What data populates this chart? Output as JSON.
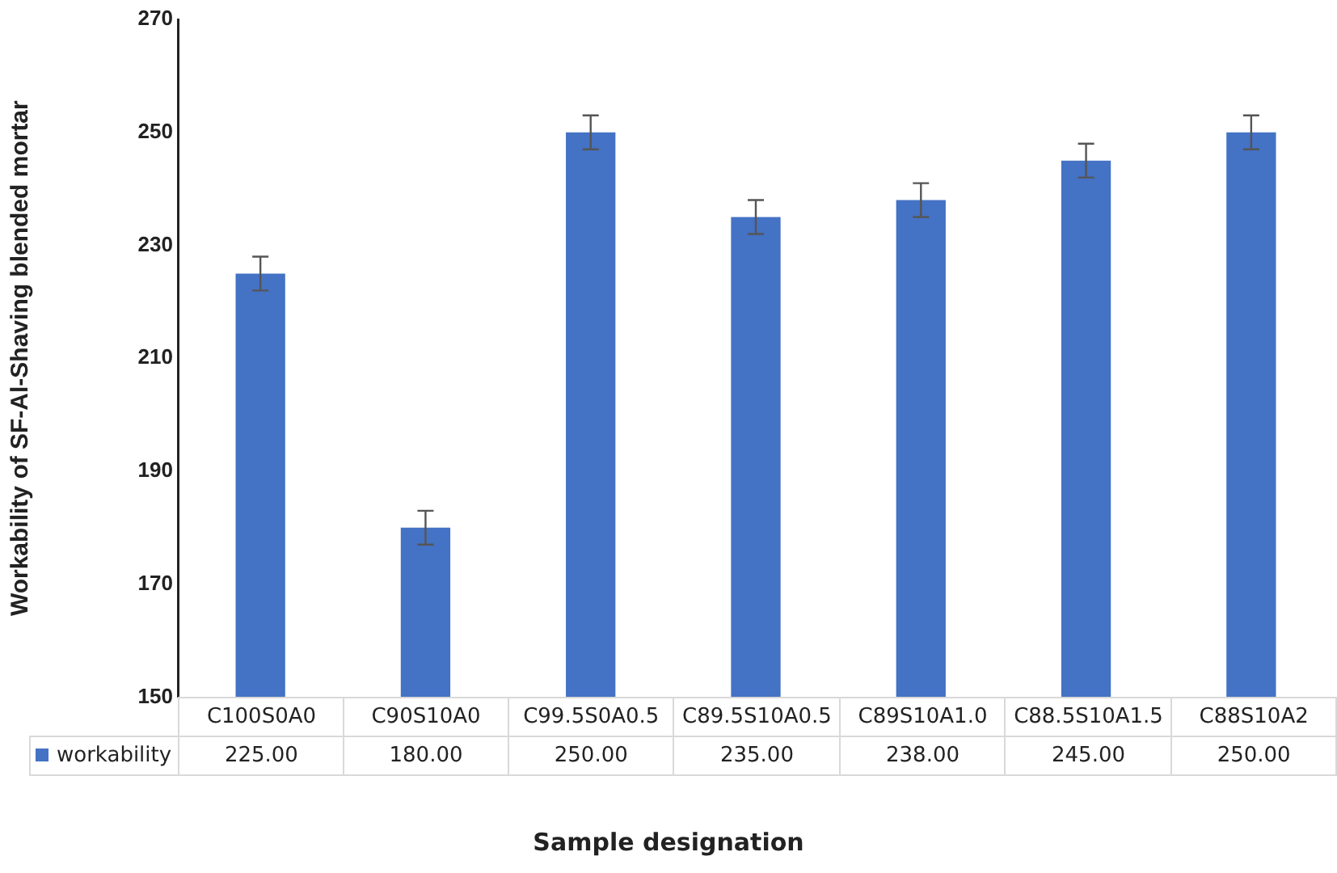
{
  "chart_data": {
    "type": "bar",
    "xlabel": "Sample designation",
    "ylabel": "Workability of SF-Al-Shaving blended mortar",
    "categories": [
      "C100S0A0",
      "C90S10A0",
      "C99.5S0A0.5",
      "C89.5S10A0.5",
      "C89S10A1.0",
      "C88.5S10A1.5",
      "C88S10A2"
    ],
    "series": [
      {
        "name": "workability",
        "color": "#4472c4",
        "values": [
          225,
          180,
          250,
          235,
          238,
          245,
          250
        ],
        "errors": [
          3,
          3,
          3,
          3,
          3,
          3,
          3
        ],
        "value_labels": [
          "225.00",
          "180.00",
          "250.00",
          "235.00",
          "238.00",
          "245.00",
          "250.00"
        ]
      }
    ],
    "ylim": [
      150,
      270
    ],
    "yticks": [
      150,
      170,
      190,
      210,
      230,
      250,
      270
    ],
    "grid": false,
    "legend": "bottom"
  }
}
